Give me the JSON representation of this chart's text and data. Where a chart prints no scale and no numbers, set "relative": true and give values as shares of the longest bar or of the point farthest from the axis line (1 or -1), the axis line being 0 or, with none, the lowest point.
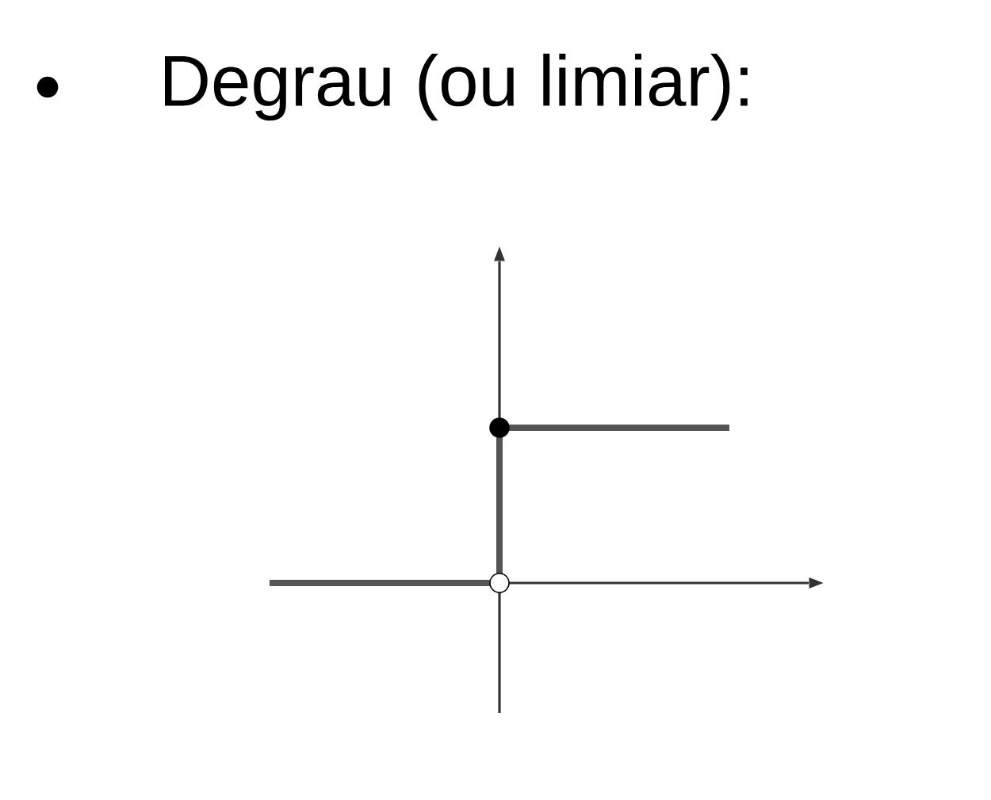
{
  "chart_data": {
    "type": "step",
    "title": "Degrau (ou limiar):",
    "relative": true,
    "categories": [
      null,
      null,
      null
    ],
    "series": [
      {
        "color": "#555555",
        "values": [
          0,
          1,
          1
        ],
        "marker": "none"
      },
      {
        "type": "line",
        "color": "#000000",
        "values": [
          null,
          1,
          null
        ],
        "marker": "circle"
      },
      {
        "type": "line",
        "color": "#ffffff",
        "values": [
          null,
          0,
          null
        ],
        "marker": "circle"
      }
    ]
  }
}
